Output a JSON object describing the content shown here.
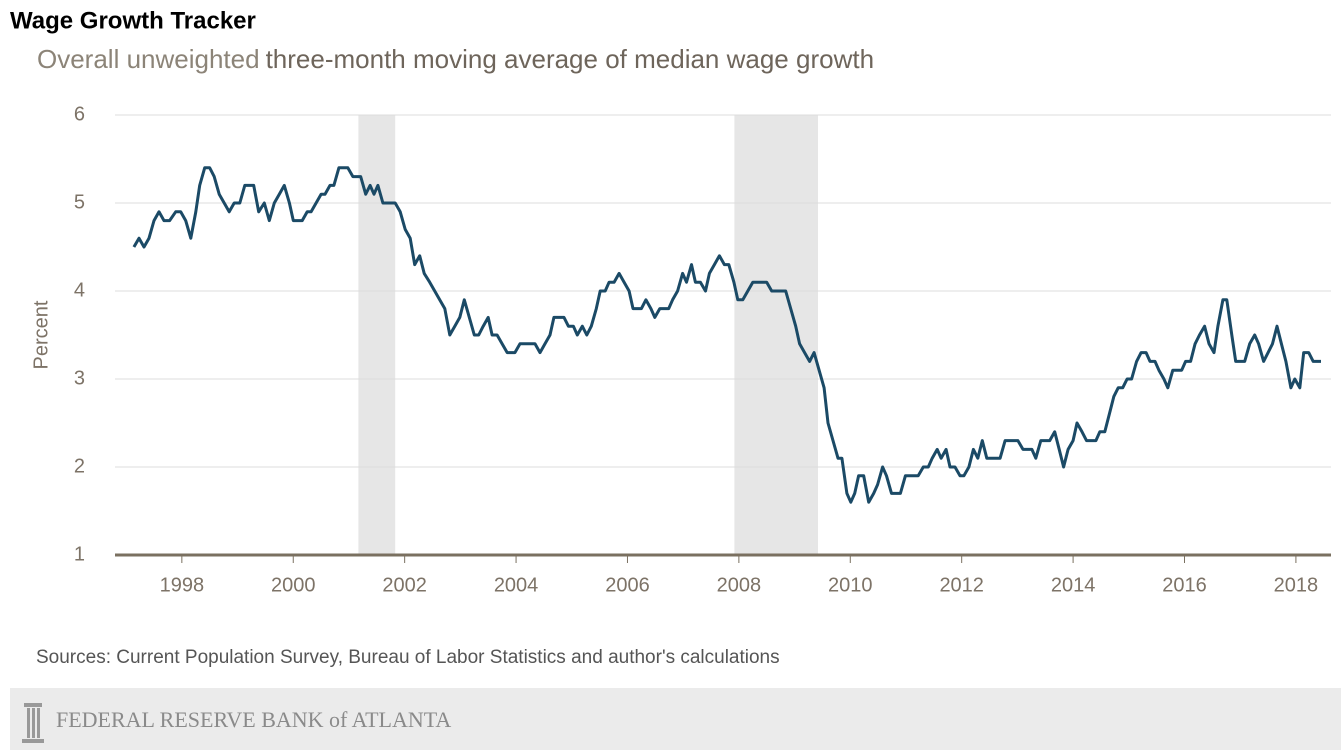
{
  "chart_data": {
    "type": "line",
    "title": "Wage Growth Tracker",
    "subtitle_highlight": "Overall unweighted",
    "subtitle": "three-month moving average of median wage growth",
    "ylabel": "Percent",
    "source": "Sources: Current Population Survey, Bureau of Labor Statistics and author's calculations",
    "footer": "FEDERAL RESERVE BANK of ATLANTA",
    "xlim": [
      1996.8,
      2018.63
    ],
    "xticks": [
      1998,
      2000,
      2002,
      2004,
      2006,
      2008,
      2010,
      2012,
      2014,
      2016,
      2018
    ],
    "ylim": [
      1,
      6
    ],
    "yticks": [
      1,
      2,
      3,
      4,
      5,
      6
    ],
    "grid": true,
    "shaded_ranges": [
      [
        2001.17,
        2001.83
      ],
      [
        2007.92,
        2009.42
      ]
    ],
    "shade_color": "#e6e6e6",
    "series": [
      {
        "name": "Overall unweighted",
        "color": "#1b4a66",
        "x": [
          1997.14,
          1997.23,
          1997.32,
          1997.41,
          1997.5,
          1997.59,
          1997.68,
          1997.78,
          1997.89,
          1997.98,
          1998.07,
          1998.16,
          1998.25,
          1998.32,
          1998.41,
          1998.5,
          1998.58,
          1998.67,
          1998.76,
          1998.85,
          1998.94,
          1999.04,
          1999.13,
          1999.29,
          1999.38,
          1999.48,
          1999.57,
          1999.66,
          1999.75,
          1999.84,
          1999.93,
          2000.0,
          2000.16,
          2000.25,
          2000.32,
          2000.41,
          2000.5,
          2000.57,
          2000.66,
          2000.73,
          2000.82,
          2000.98,
          2001.07,
          2001.21,
          2001.3,
          2001.38,
          2001.45,
          2001.52,
          2001.61,
          2001.83,
          2001.92,
          2002.01,
          2002.1,
          2002.18,
          2002.27,
          2002.35,
          2002.45,
          2002.54,
          2002.63,
          2002.72,
          2002.81,
          2002.9,
          2002.99,
          2003.07,
          2003.16,
          2003.25,
          2003.33,
          2003.41,
          2003.5,
          2003.57,
          2003.66,
          2003.75,
          2003.84,
          2003.98,
          2004.07,
          2004.34,
          2004.43,
          2004.52,
          2004.61,
          2004.68,
          2004.86,
          2004.94,
          2005.03,
          2005.1,
          2005.19,
          2005.27,
          2005.35,
          2005.44,
          2005.51,
          2005.6,
          2005.67,
          2005.76,
          2005.85,
          2005.94,
          2006.03,
          2006.1,
          2006.25,
          2006.33,
          2006.42,
          2006.49,
          2006.58,
          2006.74,
          2006.81,
          2006.9,
          2006.99,
          2007.06,
          2007.15,
          2007.22,
          2007.31,
          2007.4,
          2007.47,
          2007.56,
          2007.65,
          2007.74,
          2007.82,
          2007.91,
          2007.98,
          2008.07,
          2008.16,
          2008.25,
          2008.5,
          2008.59,
          2008.84,
          2008.93,
          2009.02,
          2009.09,
          2009.18,
          2009.27,
          2009.35,
          2009.44,
          2009.53,
          2009.6,
          2009.69,
          2009.78,
          2009.85,
          2009.94,
          2010.01,
          2010.08,
          2010.15,
          2010.24,
          2010.33,
          2010.42,
          2010.49,
          2010.58,
          2010.65,
          2010.74,
          2010.9,
          2010.99,
          2011.15,
          2011.22,
          2011.31,
          2011.4,
          2011.47,
          2011.56,
          2011.63,
          2011.72,
          2011.79,
          2011.88,
          2011.97,
          2012.04,
          2012.13,
          2012.21,
          2012.29,
          2012.37,
          2012.45,
          2012.69,
          2012.78,
          2013.01,
          2013.1,
          2013.26,
          2013.33,
          2013.42,
          2013.58,
          2013.67,
          2013.75,
          2013.83,
          2013.91,
          2014.0,
          2014.07,
          2014.16,
          2014.24,
          2014.41,
          2014.48,
          2014.57,
          2014.65,
          2014.73,
          2014.81,
          2014.89,
          2014.97,
          2015.05,
          2015.14,
          2015.22,
          2015.31,
          2015.38,
          2015.47,
          2015.54,
          2015.63,
          2015.7,
          2015.79,
          2015.95,
          2016.02,
          2016.11,
          2016.19,
          2016.27,
          2016.36,
          2016.44,
          2016.53,
          2016.6,
          2016.69,
          2016.76,
          2016.85,
          2016.92,
          2017.08,
          2017.17,
          2017.26,
          2017.33,
          2017.42,
          2017.5,
          2017.58,
          2017.66,
          2017.74,
          2017.82,
          2017.91,
          2017.98,
          2018.07,
          2018.14,
          2018.23,
          2018.31,
          2018.45
        ],
        "values": [
          4.5,
          4.6,
          4.5,
          4.6,
          4.8,
          4.9,
          4.8,
          4.8,
          4.9,
          4.9,
          4.8,
          4.6,
          4.9,
          5.2,
          5.4,
          5.4,
          5.3,
          5.1,
          5.0,
          4.9,
          5.0,
          5.0,
          5.2,
          5.2,
          4.9,
          5.0,
          4.8,
          5.0,
          5.1,
          5.2,
          5.0,
          4.8,
          4.8,
          4.9,
          4.9,
          5.0,
          5.1,
          5.1,
          5.2,
          5.2,
          5.4,
          5.4,
          5.3,
          5.3,
          5.1,
          5.2,
          5.1,
          5.2,
          5.0,
          5.0,
          4.9,
          4.7,
          4.6,
          4.3,
          4.4,
          4.2,
          4.1,
          4.0,
          3.9,
          3.8,
          3.5,
          3.6,
          3.7,
          3.9,
          3.7,
          3.5,
          3.5,
          3.6,
          3.7,
          3.5,
          3.5,
          3.4,
          3.3,
          3.3,
          3.4,
          3.4,
          3.3,
          3.4,
          3.5,
          3.7,
          3.7,
          3.6,
          3.6,
          3.5,
          3.6,
          3.5,
          3.6,
          3.8,
          4.0,
          4.0,
          4.1,
          4.1,
          4.2,
          4.1,
          4.0,
          3.8,
          3.8,
          3.9,
          3.8,
          3.7,
          3.8,
          3.8,
          3.9,
          4.0,
          4.2,
          4.1,
          4.3,
          4.1,
          4.1,
          4.0,
          4.2,
          4.3,
          4.4,
          4.3,
          4.3,
          4.1,
          3.9,
          3.9,
          4.0,
          4.1,
          4.1,
          4.0,
          4.0,
          3.8,
          3.6,
          3.4,
          3.3,
          3.2,
          3.3,
          3.1,
          2.9,
          2.5,
          2.3,
          2.1,
          2.1,
          1.7,
          1.6,
          1.7,
          1.9,
          1.9,
          1.6,
          1.7,
          1.8,
          2.0,
          1.9,
          1.7,
          1.7,
          1.9,
          1.9,
          1.9,
          2.0,
          2.0,
          2.1,
          2.2,
          2.1,
          2.2,
          2.0,
          2.0,
          1.9,
          1.9,
          2.0,
          2.2,
          2.1,
          2.3,
          2.1,
          2.1,
          2.3,
          2.3,
          2.2,
          2.2,
          2.1,
          2.3,
          2.3,
          2.4,
          2.2,
          2.0,
          2.2,
          2.3,
          2.5,
          2.4,
          2.3,
          2.3,
          2.4,
          2.4,
          2.6,
          2.8,
          2.9,
          2.9,
          3.0,
          3.0,
          3.2,
          3.3,
          3.3,
          3.2,
          3.2,
          3.1,
          3.0,
          2.9,
          3.1,
          3.1,
          3.2,
          3.2,
          3.4,
          3.5,
          3.6,
          3.4,
          3.3,
          3.6,
          3.9,
          3.9,
          3.5,
          3.2,
          3.2,
          3.4,
          3.5,
          3.4,
          3.2,
          3.3,
          3.4,
          3.6,
          3.4,
          3.2,
          2.9,
          3.0,
          2.9,
          3.3,
          3.3,
          3.2,
          3.2
        ]
      }
    ]
  }
}
